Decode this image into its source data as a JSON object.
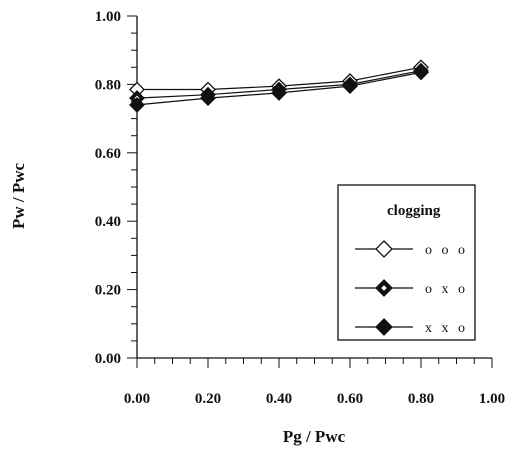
{
  "chart_data": {
    "type": "line",
    "title": "",
    "xlabel": "Pg / Pwc",
    "ylabel": "Pw / Pwc",
    "xlim": [
      0,
      1
    ],
    "ylim": [
      0,
      1
    ],
    "x_ticks": [
      "0.00",
      "0.20",
      "0.40",
      "0.60",
      "0.80",
      "1.00"
    ],
    "y_ticks": [
      "0.00",
      "0.20",
      "0.40",
      "0.60",
      "0.80",
      "1.00"
    ],
    "grid": false,
    "legend": {
      "title": "clogging",
      "placement": "lower-right"
    },
    "x": [
      0.0,
      0.2,
      0.4,
      0.6,
      0.8
    ],
    "series": [
      {
        "name": "o o o",
        "marker": "open-diamond",
        "values": [
          0.785,
          0.785,
          0.795,
          0.81,
          0.85
        ]
      },
      {
        "name": "o x o",
        "marker": "half-diamond",
        "values": [
          0.76,
          0.77,
          0.785,
          0.8,
          0.84
        ]
      },
      {
        "name": "x x o",
        "marker": "filled-diamond",
        "values": [
          0.74,
          0.76,
          0.775,
          0.795,
          0.835
        ]
      }
    ]
  }
}
